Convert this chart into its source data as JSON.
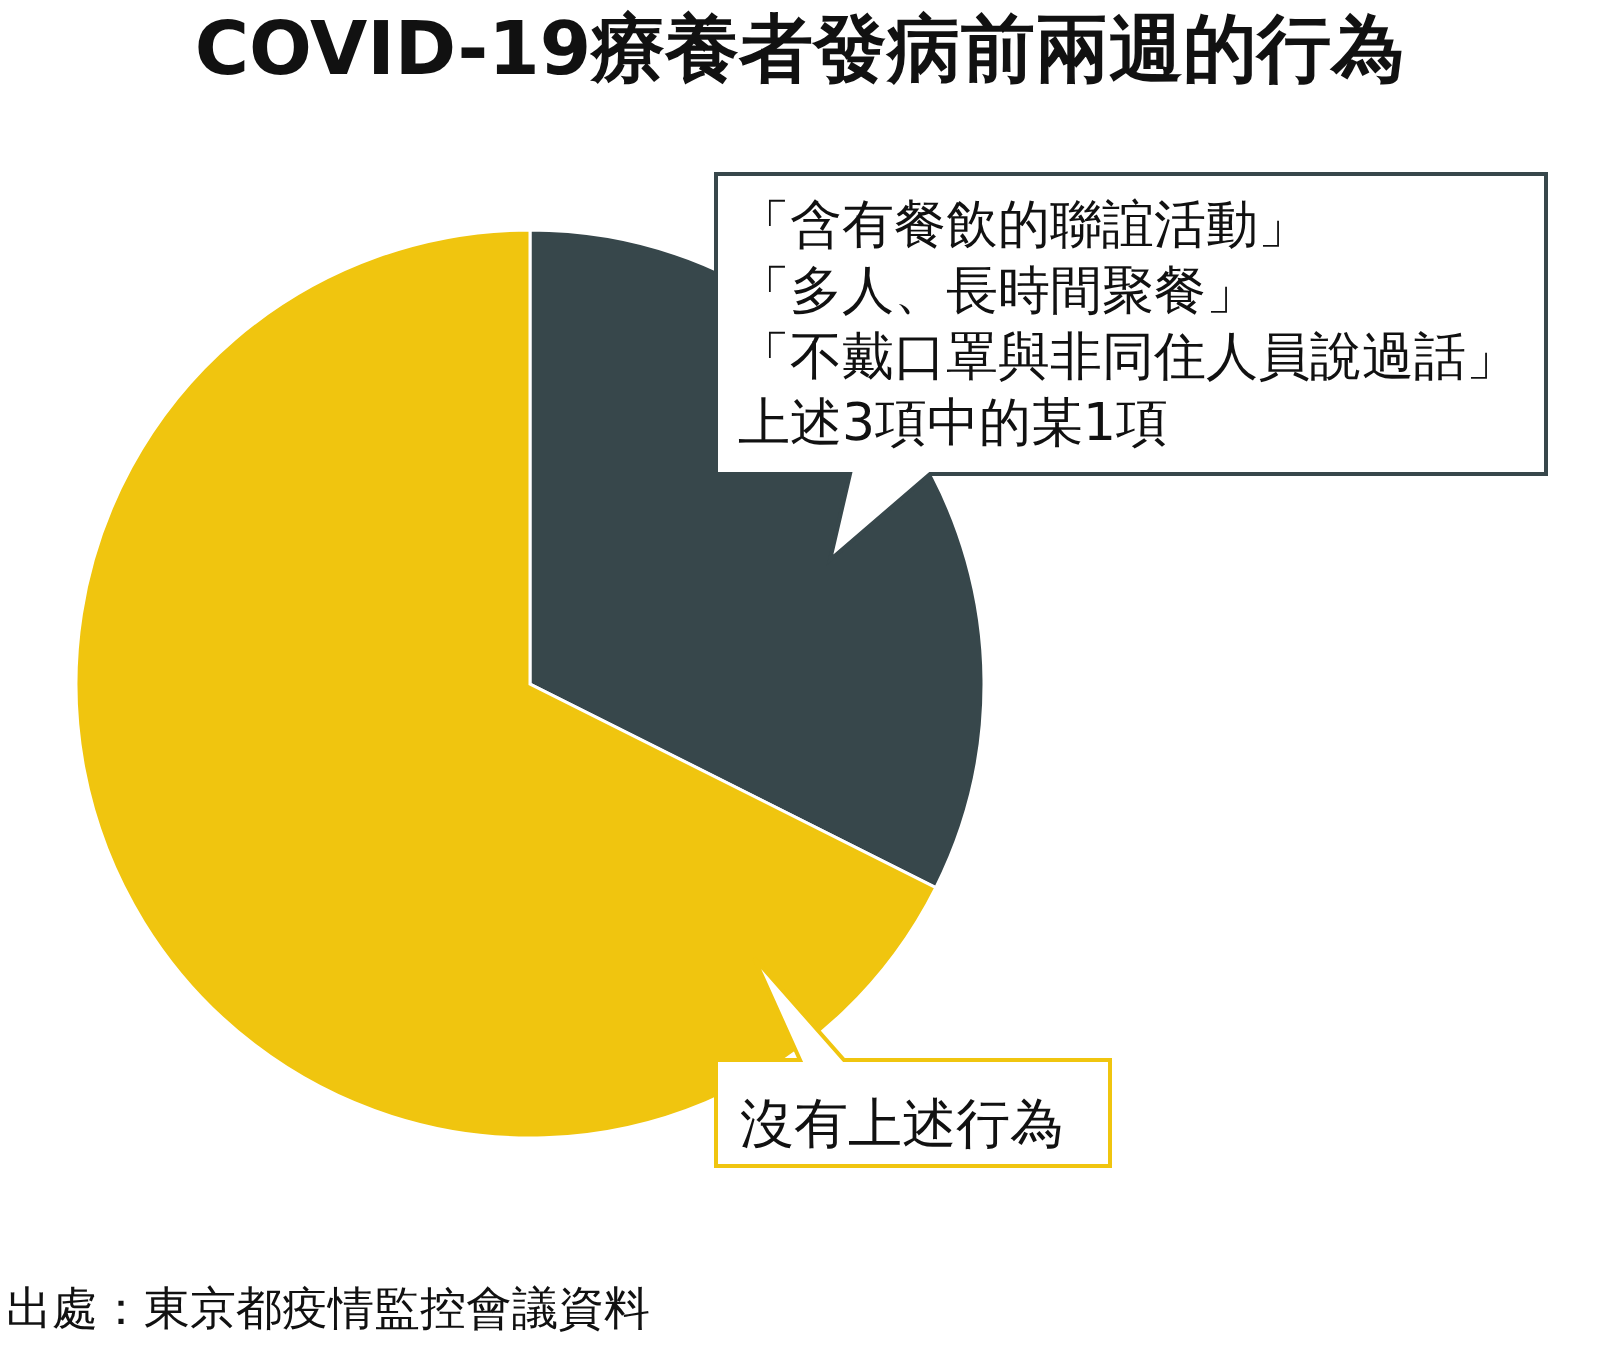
{
  "chart_data": {
    "type": "pie",
    "title": "COVID-19療養者發病前兩週的行為",
    "categories": [
      "「含有餐飲的聯誼活動」「多人、長時間聚餐」「不戴口罩與非同住人員說過話」上述3項中的某1項",
      "沒有上述行為"
    ],
    "values": [
      32.4,
      67.6
    ],
    "colors": [
      "#37474b",
      "#f0c50f"
    ],
    "annotations": [
      "出處：東京都疫情監控會議資料"
    ]
  }
}
